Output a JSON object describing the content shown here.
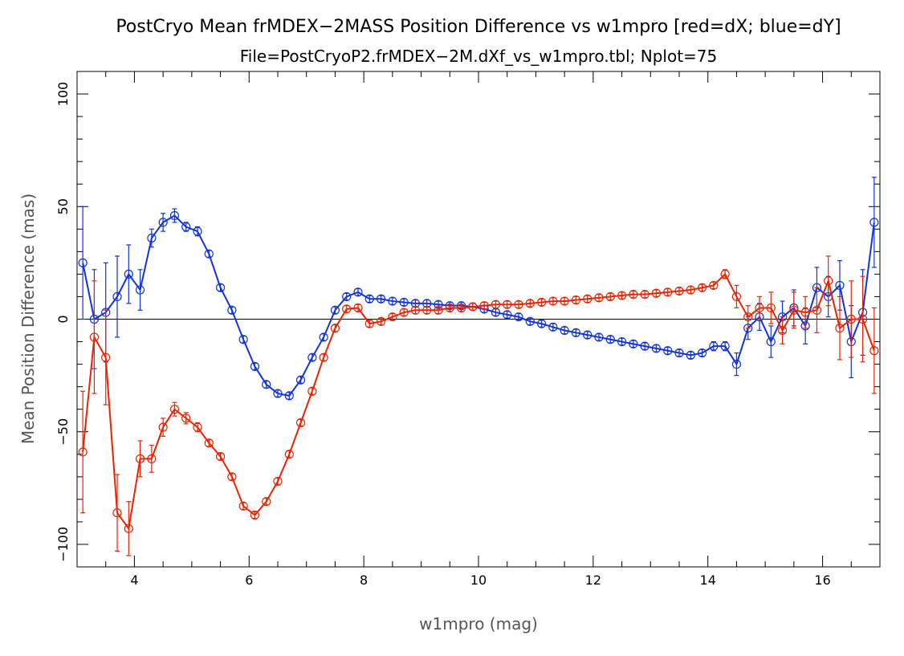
{
  "chart_data": {
    "type": "line",
    "title": "PostCryo Mean frMDEX−2MASS Position Difference vs w1mpro [red=dX; blue=dY]",
    "subtitle": "File=PostCryoP2.frMDEX−2M.dXf_vs_w1mpro.tbl; Nplot=75",
    "xlabel": "w1mpro (mag)",
    "ylabel": "Mean Position Difference (mas)",
    "xlim": [
      3.0,
      17.0
    ],
    "ylim": [
      -110,
      110
    ],
    "xticks": [
      4,
      6,
      8,
      10,
      12,
      14,
      16
    ],
    "yticks": [
      -100,
      -50,
      0,
      50,
      100
    ],
    "xtick_labels": [
      "4",
      "6",
      "8",
      "10",
      "12",
      "14",
      "16"
    ],
    "ytick_labels": [
      "−100",
      "−50",
      "0",
      "50",
      "100"
    ],
    "zero_line": true,
    "grid": false,
    "colors": {
      "dX": "#ee2200",
      "dY": "#1133dd"
    },
    "series": [
      {
        "name": "dY",
        "color": "#1133dd",
        "x": [
          3.1,
          3.3,
          3.5,
          3.7,
          3.9,
          4.1,
          4.3,
          4.5,
          4.7,
          4.9,
          5.1,
          5.3,
          5.5,
          5.7,
          5.9,
          6.1,
          6.3,
          6.5,
          6.7,
          6.9,
          7.1,
          7.3,
          7.5,
          7.7,
          7.9,
          8.1,
          8.3,
          8.5,
          8.7,
          8.9,
          9.1,
          9.3,
          9.5,
          9.7,
          9.9,
          10.1,
          10.3,
          10.5,
          10.7,
          10.9,
          11.1,
          11.3,
          11.5,
          11.7,
          11.9,
          12.1,
          12.3,
          12.5,
          12.7,
          12.9,
          13.1,
          13.3,
          13.5,
          13.7,
          13.9,
          14.1,
          14.3,
          14.5,
          14.7,
          14.9,
          15.1,
          15.3,
          15.5,
          15.7,
          15.9,
          16.1,
          16.3,
          16.5,
          16.7,
          16.9
        ],
        "y": [
          25,
          0,
          3,
          10,
          20,
          13,
          36,
          43,
          46,
          41,
          39,
          29,
          14,
          4,
          -9,
          -21,
          -29,
          -33,
          -34,
          -27,
          -17,
          -8,
          4,
          10,
          12,
          9,
          9,
          8,
          7.5,
          7,
          7,
          6.5,
          6,
          6,
          5.5,
          4.5,
          3,
          2,
          1,
          -1,
          -2,
          -3.5,
          -5,
          -6,
          -7,
          -8,
          -9,
          -10,
          -11,
          -12,
          -13,
          -14,
          -15,
          -16,
          -15,
          -12,
          -12,
          -20,
          -4,
          1,
          -10,
          1,
          5,
          -3,
          14,
          10,
          15,
          -10,
          3,
          43
        ],
        "err": [
          25,
          22,
          22,
          18,
          13,
          9,
          4,
          4,
          3,
          2,
          2,
          1.5,
          1.5,
          1.5,
          1.5,
          1.5,
          1.5,
          1.5,
          1.5,
          1.5,
          1.5,
          1.5,
          1.5,
          1.5,
          1.5,
          1.5,
          1.5,
          1.5,
          1.5,
          1.5,
          1.5,
          1.5,
          1.5,
          1.5,
          1.5,
          1.5,
          1.5,
          1.5,
          1.5,
          1.5,
          1.5,
          1.5,
          1.5,
          1.5,
          1.5,
          1.5,
          1.5,
          1.5,
          1.5,
          1.5,
          1.5,
          1.5,
          1.5,
          1.5,
          1.5,
          2,
          2,
          5,
          5,
          6,
          7,
          7,
          8,
          8,
          9,
          9,
          11,
          16,
          19,
          20
        ]
      },
      {
        "name": "dX",
        "color": "#ee2200",
        "x": [
          3.1,
          3.3,
          3.5,
          3.7,
          3.9,
          4.1,
          4.3,
          4.5,
          4.7,
          4.9,
          5.1,
          5.3,
          5.5,
          5.7,
          5.9,
          6.1,
          6.3,
          6.5,
          6.7,
          6.9,
          7.1,
          7.3,
          7.5,
          7.7,
          7.9,
          8.1,
          8.3,
          8.5,
          8.7,
          8.9,
          9.1,
          9.3,
          9.5,
          9.7,
          9.9,
          10.1,
          10.3,
          10.5,
          10.7,
          10.9,
          11.1,
          11.3,
          11.5,
          11.7,
          11.9,
          12.1,
          12.3,
          12.5,
          12.7,
          12.9,
          13.1,
          13.3,
          13.5,
          13.7,
          13.9,
          14.1,
          14.3,
          14.5,
          14.7,
          14.9,
          15.1,
          15.3,
          15.5,
          15.7,
          15.9,
          16.1,
          16.3,
          16.5,
          16.7,
          16.9
        ],
        "y": [
          -59,
          -8,
          -17,
          -86,
          -93,
          -62,
          -62,
          -48,
          -40,
          -44,
          -48,
          -55,
          -61,
          -70,
          -83,
          -87,
          -81,
          -72,
          -60,
          -46,
          -32,
          -17,
          -4,
          4.5,
          5,
          -2,
          -1,
          1,
          3,
          4,
          4,
          4,
          5,
          5,
          5.5,
          6,
          6.5,
          6.5,
          6.5,
          7,
          7.5,
          8,
          8,
          8.5,
          9,
          9.5,
          10,
          10.5,
          11,
          11,
          11.5,
          12,
          12.5,
          13,
          14,
          15,
          20,
          10,
          1,
          5,
          5,
          -5,
          4,
          3,
          4,
          17,
          -4,
          0,
          0,
          -14
        ],
        "err": [
          27,
          25,
          21,
          17,
          12,
          8,
          6,
          4,
          3,
          2.5,
          2,
          1.5,
          1.5,
          1.5,
          1.5,
          1.5,
          1.5,
          1.5,
          1.5,
          1.5,
          1.5,
          1.5,
          1.5,
          1.5,
          1.5,
          1.5,
          1.5,
          1.5,
          1.5,
          1.5,
          1.5,
          1.5,
          1.5,
          1.5,
          1.5,
          1.5,
          1.5,
          1.5,
          1.5,
          1.5,
          1.5,
          1.5,
          1.5,
          1.5,
          1.5,
          1.5,
          1.5,
          1.5,
          1.5,
          1.5,
          1.5,
          1.5,
          1.5,
          1.5,
          1.5,
          1.5,
          2,
          5,
          5,
          5,
          7,
          6,
          8,
          7,
          10,
          11,
          14,
          17,
          19,
          19
        ]
      }
    ]
  }
}
